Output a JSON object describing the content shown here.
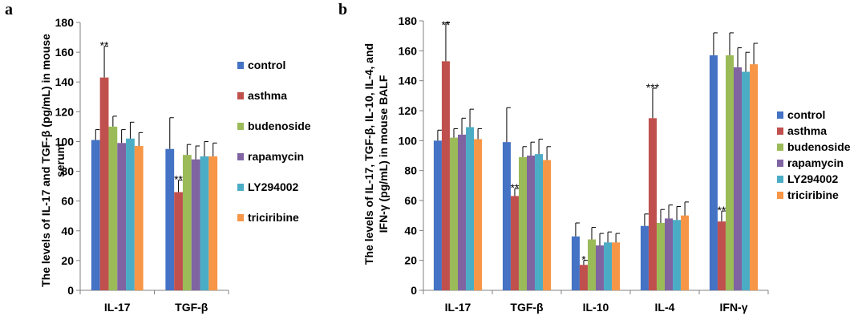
{
  "colors": {
    "control": "#4472C4",
    "asthma": "#C0504D",
    "budenoside": "#9BBB59",
    "rapamycin": "#8064A2",
    "LY294002": "#4BACC6",
    "triciribine": "#F79646"
  },
  "chart_data": [
    {
      "type": "bar",
      "panel": "a",
      "ylabel_lines": [
        "The levels of IL-17 and TGF-β (pg/mL) in mouse",
        "serum"
      ],
      "ylim": [
        0,
        180
      ],
      "yticks": [
        0,
        20,
        40,
        60,
        80,
        100,
        120,
        140,
        160,
        180
      ],
      "grid": false,
      "legend_position": "right",
      "categories": [
        "IL-17",
        "TGF-β"
      ],
      "series": [
        {
          "name": "control",
          "values": [
            101,
            95
          ],
          "errors": [
            7,
            21
          ]
        },
        {
          "name": "asthma",
          "values": [
            143,
            66
          ],
          "errors": [
            21,
            8
          ]
        },
        {
          "name": "budenoside",
          "values": [
            110,
            91
          ],
          "errors": [
            7,
            7
          ]
        },
        {
          "name": "rapamycin",
          "values": [
            99,
            88
          ],
          "errors": [
            9,
            9
          ]
        },
        {
          "name": "LY294002",
          "values": [
            102,
            90
          ],
          "errors": [
            11,
            10
          ]
        },
        {
          "name": "triciribine",
          "values": [
            97,
            90
          ],
          "errors": [
            9,
            9
          ]
        }
      ],
      "annotations": [
        {
          "text": "**",
          "category": "IL-17",
          "series": "asthma"
        },
        {
          "text": "**",
          "category": "TGF-β",
          "series": "asthma"
        }
      ]
    },
    {
      "type": "bar",
      "panel": "b",
      "ylabel_lines": [
        "The levels of IL-17, TGF-β, IL-10, IL-4,   and",
        "IFN-γ (pg/mL) in mouse BALF"
      ],
      "ylim": [
        0,
        180
      ],
      "yticks": [
        0,
        20,
        40,
        60,
        80,
        100,
        120,
        140,
        160,
        180
      ],
      "grid": false,
      "legend_position": "right",
      "categories": [
        "IL-17",
        "TGF-β",
        "IL-10",
        "IL-4",
        "IFN-γ"
      ],
      "series": [
        {
          "name": "control",
          "values": [
            100,
            99,
            36,
            43,
            157
          ],
          "errors": [
            7,
            23,
            9,
            8,
            15
          ]
        },
        {
          "name": "asthma",
          "values": [
            153,
            63,
            17,
            115,
            46
          ],
          "errors": [
            26,
            5,
            3,
            20,
            7
          ]
        },
        {
          "name": "budenoside",
          "values": [
            102,
            89,
            34,
            45,
            157
          ],
          "errors": [
            6,
            7,
            8,
            9,
            15
          ]
        },
        {
          "name": "rapamycin",
          "values": [
            104,
            90,
            30,
            48,
            149
          ],
          "errors": [
            11,
            9,
            8,
            9,
            13
          ]
        },
        {
          "name": "LY294002",
          "values": [
            109,
            91,
            32,
            47,
            146
          ],
          "errors": [
            12,
            10,
            7,
            9,
            13
          ]
        },
        {
          "name": "triciribine",
          "values": [
            101,
            87,
            32,
            50,
            151
          ],
          "errors": [
            7,
            9,
            6,
            9,
            14
          ]
        }
      ],
      "annotations": [
        {
          "text": "**",
          "category": "IL-17",
          "series": "asthma"
        },
        {
          "text": "**",
          "category": "TGF-β",
          "series": "asthma"
        },
        {
          "text": "*",
          "category": "IL-10",
          "series": "asthma"
        },
        {
          "text": "***",
          "category": "IL-4",
          "series": "asthma"
        },
        {
          "text": "**",
          "category": "IFN-γ",
          "series": "asthma"
        }
      ]
    }
  ]
}
